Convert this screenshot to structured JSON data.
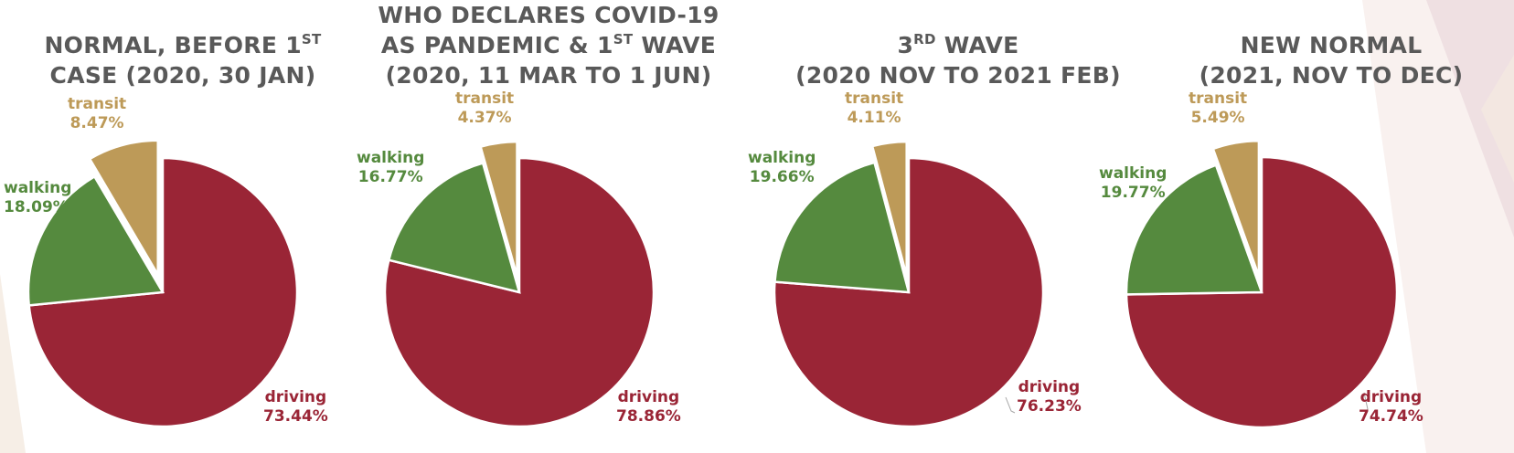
{
  "colors": {
    "driving": "#9a2536",
    "walking": "#558a3e",
    "transit": "#bd9a58",
    "title": "#595959"
  },
  "chart_data": [
    {
      "type": "pie",
      "title_parts": [
        [
          {
            "t": "NORMAL, BEFORE 1"
          },
          {
            "t": "ST",
            "sup": true
          }
        ],
        [
          {
            "t": "CASE (2020, 30 JAN)"
          }
        ]
      ],
      "slices": [
        {
          "name": "driving",
          "value": 73.44,
          "label": "73.44%"
        },
        {
          "name": "walking",
          "value": 18.09,
          "label": "18.09%"
        },
        {
          "name": "transit",
          "value": 8.47,
          "label": "8.47%",
          "exploded": true
        }
      ]
    },
    {
      "type": "pie",
      "title_parts": [
        [
          {
            "t": "WHO DECLARES COVID-19"
          }
        ],
        [
          {
            "t": "AS PANDEMIC & 1"
          },
          {
            "t": "ST",
            "sup": true
          },
          {
            "t": " WAVE"
          }
        ],
        [
          {
            "t": "(2020, 11 MAR TO 1 JUN)"
          }
        ]
      ],
      "slices": [
        {
          "name": "driving",
          "value": 78.86,
          "label": "78.86%"
        },
        {
          "name": "walking",
          "value": 16.77,
          "label": "16.77%"
        },
        {
          "name": "transit",
          "value": 4.37,
          "label": "4.37%",
          "exploded": true
        }
      ]
    },
    {
      "type": "pie",
      "title_parts": [
        [
          {
            "t": "3"
          },
          {
            "t": "RD",
            "sup": true
          },
          {
            "t": " WAVE"
          }
        ],
        [
          {
            "t": "(2020 NOV TO 2021 FEB)"
          }
        ]
      ],
      "slices": [
        {
          "name": "driving",
          "value": 76.23,
          "label": "76.23%"
        },
        {
          "name": "walking",
          "value": 19.66,
          "label": "19.66%"
        },
        {
          "name": "transit",
          "value": 4.11,
          "label": "4.11%",
          "exploded": true
        }
      ]
    },
    {
      "type": "pie",
      "title_parts": [
        [
          {
            "t": "NEW NORMAL"
          }
        ],
        [
          {
            "t": "(2021, NOV TO DEC)"
          }
        ]
      ],
      "slices": [
        {
          "name": "driving",
          "value": 74.74,
          "label": "74.74%"
        },
        {
          "name": "walking",
          "value": 19.77,
          "label": "19.77%"
        },
        {
          "name": "transit",
          "value": 5.49,
          "label": "5.49%",
          "exploded": true
        }
      ]
    }
  ]
}
